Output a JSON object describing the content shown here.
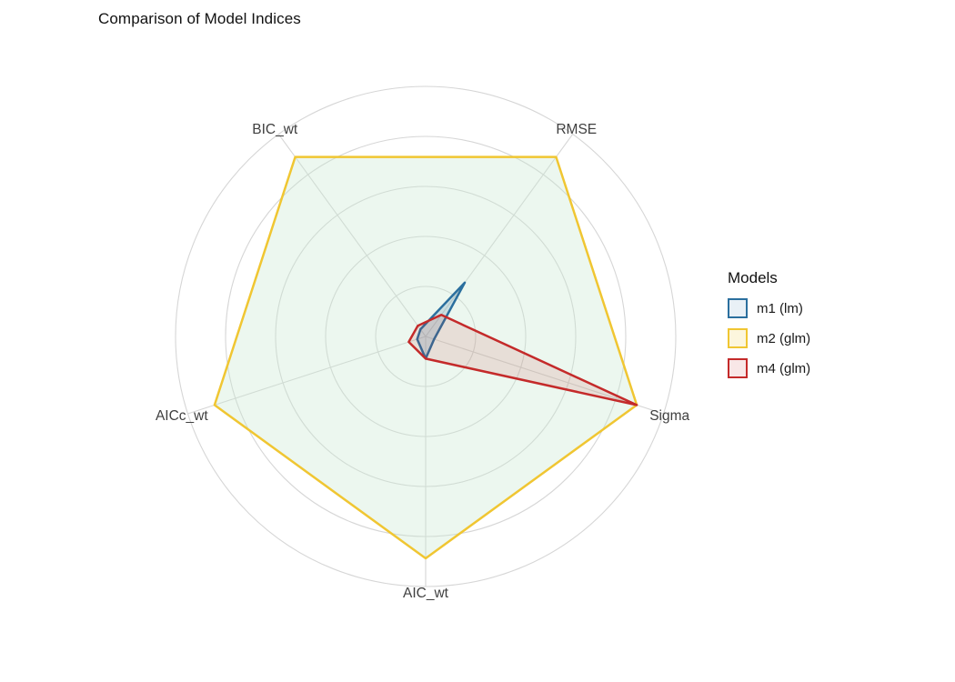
{
  "title": "Comparison of Model Indices",
  "legend": {
    "title": "Models",
    "items": [
      {
        "label": "m1 (lm)",
        "stroke": "#2b6f9e",
        "fill": "#e9f0f6"
      },
      {
        "label": "m2 (glm)",
        "stroke": "#f0c632",
        "fill": "#fcf6dd"
      },
      {
        "label": "m4 (glm)",
        "stroke": "#c42a2a",
        "fill": "#f8e7e7"
      }
    ]
  },
  "chart_data": {
    "type": "radar",
    "title": "Comparison of Model Indices",
    "categories": [
      "RMSE",
      "Sigma",
      "AIC_wt",
      "AICc_wt",
      "BIC_wt"
    ],
    "axis_angles_deg": [
      54,
      -18,
      -90,
      198,
      126
    ],
    "scale": {
      "min": 0,
      "max": 1,
      "grid_levels": [
        0.2,
        0.4,
        0.6,
        0.8,
        1.0
      ]
    },
    "grid": {
      "shape": "circle",
      "color": "#d6d6d6",
      "spokes": true
    },
    "legend_position": "right",
    "series": [
      {
        "name": "m1 (lm)",
        "stroke": "#2b6f9e",
        "fill": "rgba(43,111,158,0.18)",
        "values": [
          0.3,
          0.04,
          0.1,
          0.04,
          0.04
        ]
      },
      {
        "name": "m2 (glm)",
        "stroke": "#f0c632",
        "fill": "rgba(200,232,208,0.35)",
        "values": [
          1.0,
          1.0,
          1.0,
          1.0,
          1.0
        ]
      },
      {
        "name": "m4 (glm)",
        "stroke": "#c42a2a",
        "fill": "rgba(196,42,42,0.12)",
        "values": [
          0.12,
          1.0,
          0.1,
          0.08,
          0.06
        ]
      }
    ],
    "draw_order": [
      1,
      0,
      2
    ]
  }
}
